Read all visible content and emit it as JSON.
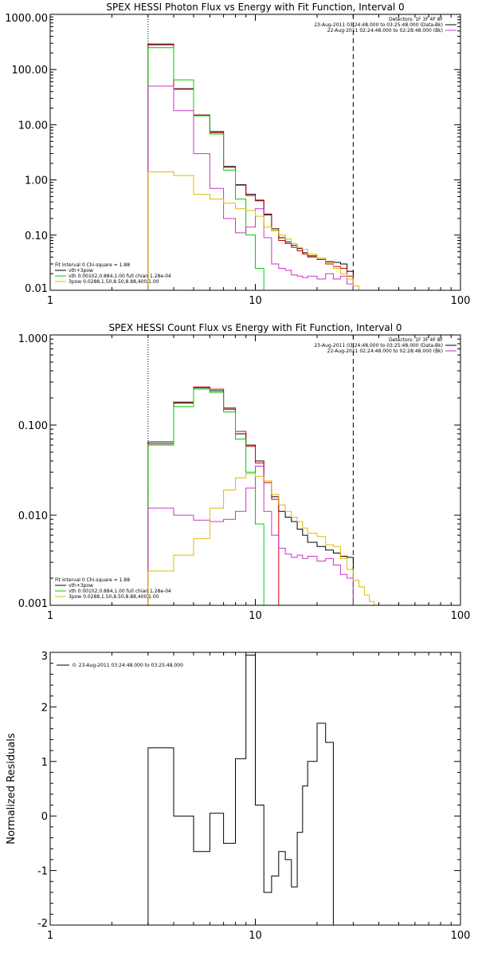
{
  "chart_data": [
    {
      "type": "line",
      "title": "SPEX HESSI Photon Flux vs Energy with Fit Function, Interval 0",
      "xlabel": "",
      "ylabel": "",
      "xscale": "log",
      "yscale": "log",
      "xlim": [
        1,
        100
      ],
      "ylim": [
        0.01,
        1000
      ],
      "x_ticks": [
        "1",
        "10",
        "100"
      ],
      "y_ticks": [
        "0.01",
        "0.10",
        "1.00",
        "10.00",
        "100.00",
        "1000.00"
      ],
      "vlines": [
        {
          "x": 3,
          "style": "dotted"
        },
        {
          "x": 30,
          "style": "dashed"
        }
      ],
      "header": [
        "Detectors: 1F 3F 4F 8F",
        "23-Aug-2011 03:24:48.000 to 03:25:48.000 (Data-Bk)",
        "22-Aug-2011 02:24:48.000 to 02:28:48.000 (Bk)"
      ],
      "legend": {
        "placement": "bottom-left",
        "title": "Fit Interval 0   Chi-square = 1.88",
        "entries": [
          {
            "label": "vth+3pow",
            "color": "#000000"
          },
          {
            "label": "vth 0.00102,0.884,1.00  full chian 1.28e-04",
            "color": "#00cc00"
          },
          {
            "label": "3pow 0.0288,1.50,8.50,8.88,400,1.00",
            "color": "#ddbb00"
          }
        ]
      },
      "edges": [
        3,
        4,
        5,
        6,
        7,
        8,
        9,
        10,
        11,
        12,
        13,
        14,
        15,
        16,
        17,
        18,
        20,
        22,
        24,
        26,
        28,
        30,
        32,
        34
      ],
      "series": [
        {
          "color": "#000000",
          "values": [
            290,
            45,
            15,
            7.5,
            1.75,
            0.82,
            0.55,
            0.43,
            0.24,
            0.13,
            0.09,
            0.075,
            0.065,
            0.057,
            0.048,
            0.042,
            0.038,
            0.033,
            0.032,
            0.03,
            0.022,
            null,
            null
          ]
        },
        {
          "color": "#cc0000",
          "values": [
            280,
            44,
            15,
            7.2,
            1.7,
            0.8,
            0.52,
            0.42,
            0.23,
            0.12,
            0.08,
            0.07,
            0.06,
            0.052,
            0.045,
            0.04,
            0.036,
            0.03,
            0.027,
            0.025,
            0.018,
            null,
            null
          ]
        },
        {
          "color": "#00cc00",
          "values": [
            250,
            65,
            14.5,
            6.8,
            1.5,
            0.45,
            0.1,
            0.025,
            0.005,
            null,
            null,
            null,
            null,
            null,
            null,
            null,
            null,
            null,
            null,
            null,
            null,
            null,
            null
          ]
        },
        {
          "color": "#cc33cc",
          "values": [
            50,
            18,
            3,
            0.7,
            0.2,
            0.11,
            0.14,
            0.3,
            0.09,
            0.03,
            0.025,
            0.023,
            0.019,
            0.018,
            0.017,
            0.018,
            0.016,
            0.02,
            0.016,
            0.018,
            0.013,
            null,
            null
          ]
        },
        {
          "color": "#ddbb00",
          "values": [
            1.4,
            1.2,
            0.55,
            0.45,
            0.38,
            0.3,
            0.28,
            0.22,
            0.14,
            0.12,
            0.1,
            0.085,
            0.07,
            0.06,
            0.055,
            0.045,
            0.038,
            0.032,
            0.025,
            0.02,
            0.016,
            0.012,
            0.01
          ]
        }
      ]
    },
    {
      "type": "line",
      "title": "SPEX HESSI Count Flux vs Energy with Fit Function, Interval 0",
      "xlabel": "",
      "ylabel": "",
      "xscale": "log",
      "yscale": "log",
      "xlim": [
        1,
        100
      ],
      "ylim": [
        0.001,
        1
      ],
      "x_ticks": [
        "1",
        "10",
        "100"
      ],
      "y_ticks": [
        "0.001",
        "0.010",
        "0.100",
        "1.000"
      ],
      "vlines": [
        {
          "x": 3,
          "style": "dotted"
        },
        {
          "x": 30,
          "style": "dashed"
        }
      ],
      "header": [
        "Detectors: 1F 3F 4F 8F",
        "23-Aug-2011 03:24:48.000 to 03:25:48.000 (Data-Bk)",
        "22-Aug-2011 02:24:48.000 to 02:28:48.000 (Bk)"
      ],
      "legend": {
        "placement": "bottom-left",
        "title": "Fit Interval 0   Chi-square = 1.88",
        "entries": [
          {
            "label": "vth+3pow",
            "color": "#000000"
          },
          {
            "label": "vth 0.00102,0.884,1.00  full chian 1.28e-04",
            "color": "#00cc00"
          },
          {
            "label": "3pow 0.0288,1.50,8.50,8.88,400,1.00",
            "color": "#ddbb00"
          }
        ]
      },
      "edges": [
        3,
        4,
        5,
        6,
        7,
        8,
        9,
        10,
        11,
        12,
        13,
        14,
        15,
        16,
        17,
        18,
        20,
        22,
        24,
        26,
        28,
        30,
        32,
        34,
        36,
        38,
        40
      ],
      "series": [
        {
          "color": "#000000",
          "values": [
            0.065,
            0.18,
            0.26,
            0.24,
            0.15,
            0.08,
            0.06,
            0.04,
            0.024,
            0.016,
            0.011,
            0.0095,
            0.0085,
            0.007,
            0.006,
            0.005,
            0.0045,
            0.0041,
            0.0038,
            0.0035,
            0.0034,
            null,
            null,
            null,
            null,
            null
          ]
        },
        {
          "color": "#cc0000",
          "values": [
            0.062,
            0.175,
            0.265,
            0.25,
            0.155,
            0.085,
            0.058,
            0.038,
            0.023,
            0.015,
            null,
            null,
            null,
            null,
            null,
            null,
            null,
            null,
            null,
            null,
            null,
            null,
            null,
            null,
            null,
            null
          ]
        },
        {
          "color": "#00cc00",
          "values": [
            0.06,
            0.16,
            0.25,
            0.23,
            0.14,
            0.07,
            0.03,
            0.008,
            0.0008,
            null,
            null,
            null,
            null,
            null,
            null,
            null,
            null,
            null,
            null,
            null,
            null,
            null,
            null,
            null,
            null,
            null
          ]
        },
        {
          "color": "#cc33cc",
          "values": [
            0.012,
            0.01,
            0.0088,
            0.0085,
            0.009,
            0.011,
            0.02,
            0.035,
            0.011,
            0.006,
            0.0043,
            0.0037,
            0.0034,
            0.0036,
            0.0033,
            0.0035,
            0.0031,
            0.0033,
            0.0028,
            0.0022,
            0.002,
            null,
            null,
            null,
            null,
            null
          ]
        },
        {
          "color": "#ddbb00",
          "values": [
            0.0024,
            0.0036,
            0.0055,
            0.012,
            0.019,
            0.026,
            0.029,
            0.027,
            0.024,
            0.017,
            0.013,
            0.011,
            0.0095,
            0.0085,
            0.0072,
            0.0063,
            0.0058,
            0.0047,
            0.0045,
            0.0033,
            0.0025,
            0.0019,
            0.0016,
            0.0013,
            0.0011,
            null
          ]
        }
      ]
    },
    {
      "type": "line",
      "title": "",
      "xlabel": "",
      "ylabel": "Normalized Residuals",
      "xscale": "log",
      "yscale": "linear",
      "xlim": [
        1,
        100
      ],
      "ylim": [
        -2,
        3
      ],
      "x_ticks": [
        "1",
        "10",
        "100"
      ],
      "y_ticks": [
        "-2",
        "-1",
        "0",
        "1",
        "2",
        "3"
      ],
      "legend": {
        "placement": "top-left",
        "entries": [
          {
            "label": "0: 23-Aug-2011 03:24:48.000 to 03:25:48.000",
            "color": "#000000"
          }
        ]
      },
      "edges": [
        3,
        4,
        5,
        6,
        7,
        8,
        9,
        10,
        11,
        12,
        13,
        14,
        15,
        16,
        17,
        18,
        20,
        22,
        24,
        26,
        28,
        30
      ],
      "series": [
        {
          "color": "#000000",
          "values": [
            1.25,
            0.0,
            -0.65,
            0.05,
            -0.5,
            1.05,
            2.95,
            0.2,
            -1.4,
            -1.1,
            -0.65,
            -0.8,
            -1.3,
            -0.3,
            0.55,
            1.0,
            1.7,
            1.35,
            null,
            null,
            null
          ]
        }
      ]
    }
  ]
}
